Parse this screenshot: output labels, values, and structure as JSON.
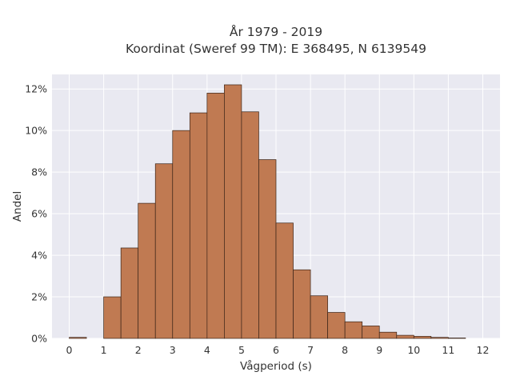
{
  "chart_data": {
    "type": "bar",
    "title": "År 1979 - 2019",
    "subtitle": "Koordinat (Sweref 99 TM): E 368495, N 6139549",
    "xlabel": "Vågperiod (s)",
    "ylabel": "Andel",
    "xlim": [
      -0.5,
      12.5
    ],
    "ylim": [
      0,
      12.7
    ],
    "x_ticks": [
      "0",
      "1",
      "2",
      "3",
      "4",
      "5",
      "6",
      "7",
      "8",
      "9",
      "10",
      "11",
      "12"
    ],
    "y_ticks": [
      "0%",
      "2%",
      "4%",
      "6%",
      "8%",
      "10%",
      "12%"
    ],
    "y_tick_values": [
      0,
      2,
      4,
      6,
      8,
      10,
      12
    ],
    "grid": true,
    "bin_width": 0.5,
    "bins": [
      {
        "x0": 0.0,
        "value": 0.05
      },
      {
        "x0": 0.5,
        "value": 0.0
      },
      {
        "x0": 1.0,
        "value": 2.0
      },
      {
        "x0": 1.5,
        "value": 4.35
      },
      {
        "x0": 2.0,
        "value": 6.5
      },
      {
        "x0": 2.5,
        "value": 8.4
      },
      {
        "x0": 3.0,
        "value": 10.0
      },
      {
        "x0": 3.5,
        "value": 10.85
      },
      {
        "x0": 4.0,
        "value": 11.8
      },
      {
        "x0": 4.5,
        "value": 12.2
      },
      {
        "x0": 5.0,
        "value": 10.9
      },
      {
        "x0": 5.5,
        "value": 8.6
      },
      {
        "x0": 6.0,
        "value": 5.55
      },
      {
        "x0": 6.5,
        "value": 3.3
      },
      {
        "x0": 7.0,
        "value": 2.05
      },
      {
        "x0": 7.5,
        "value": 1.25
      },
      {
        "x0": 8.0,
        "value": 0.8
      },
      {
        "x0": 8.5,
        "value": 0.6
      },
      {
        "x0": 9.0,
        "value": 0.3
      },
      {
        "x0": 9.5,
        "value": 0.15
      },
      {
        "x0": 10.0,
        "value": 0.1
      },
      {
        "x0": 10.5,
        "value": 0.05
      },
      {
        "x0": 11.0,
        "value": 0.02
      }
    ],
    "colors": {
      "bar_fill": "#c07a52",
      "bar_edge": "#3a2418",
      "plot_bg": "#e9e9f1",
      "grid": "#ffffff",
      "text": "#333333"
    }
  }
}
